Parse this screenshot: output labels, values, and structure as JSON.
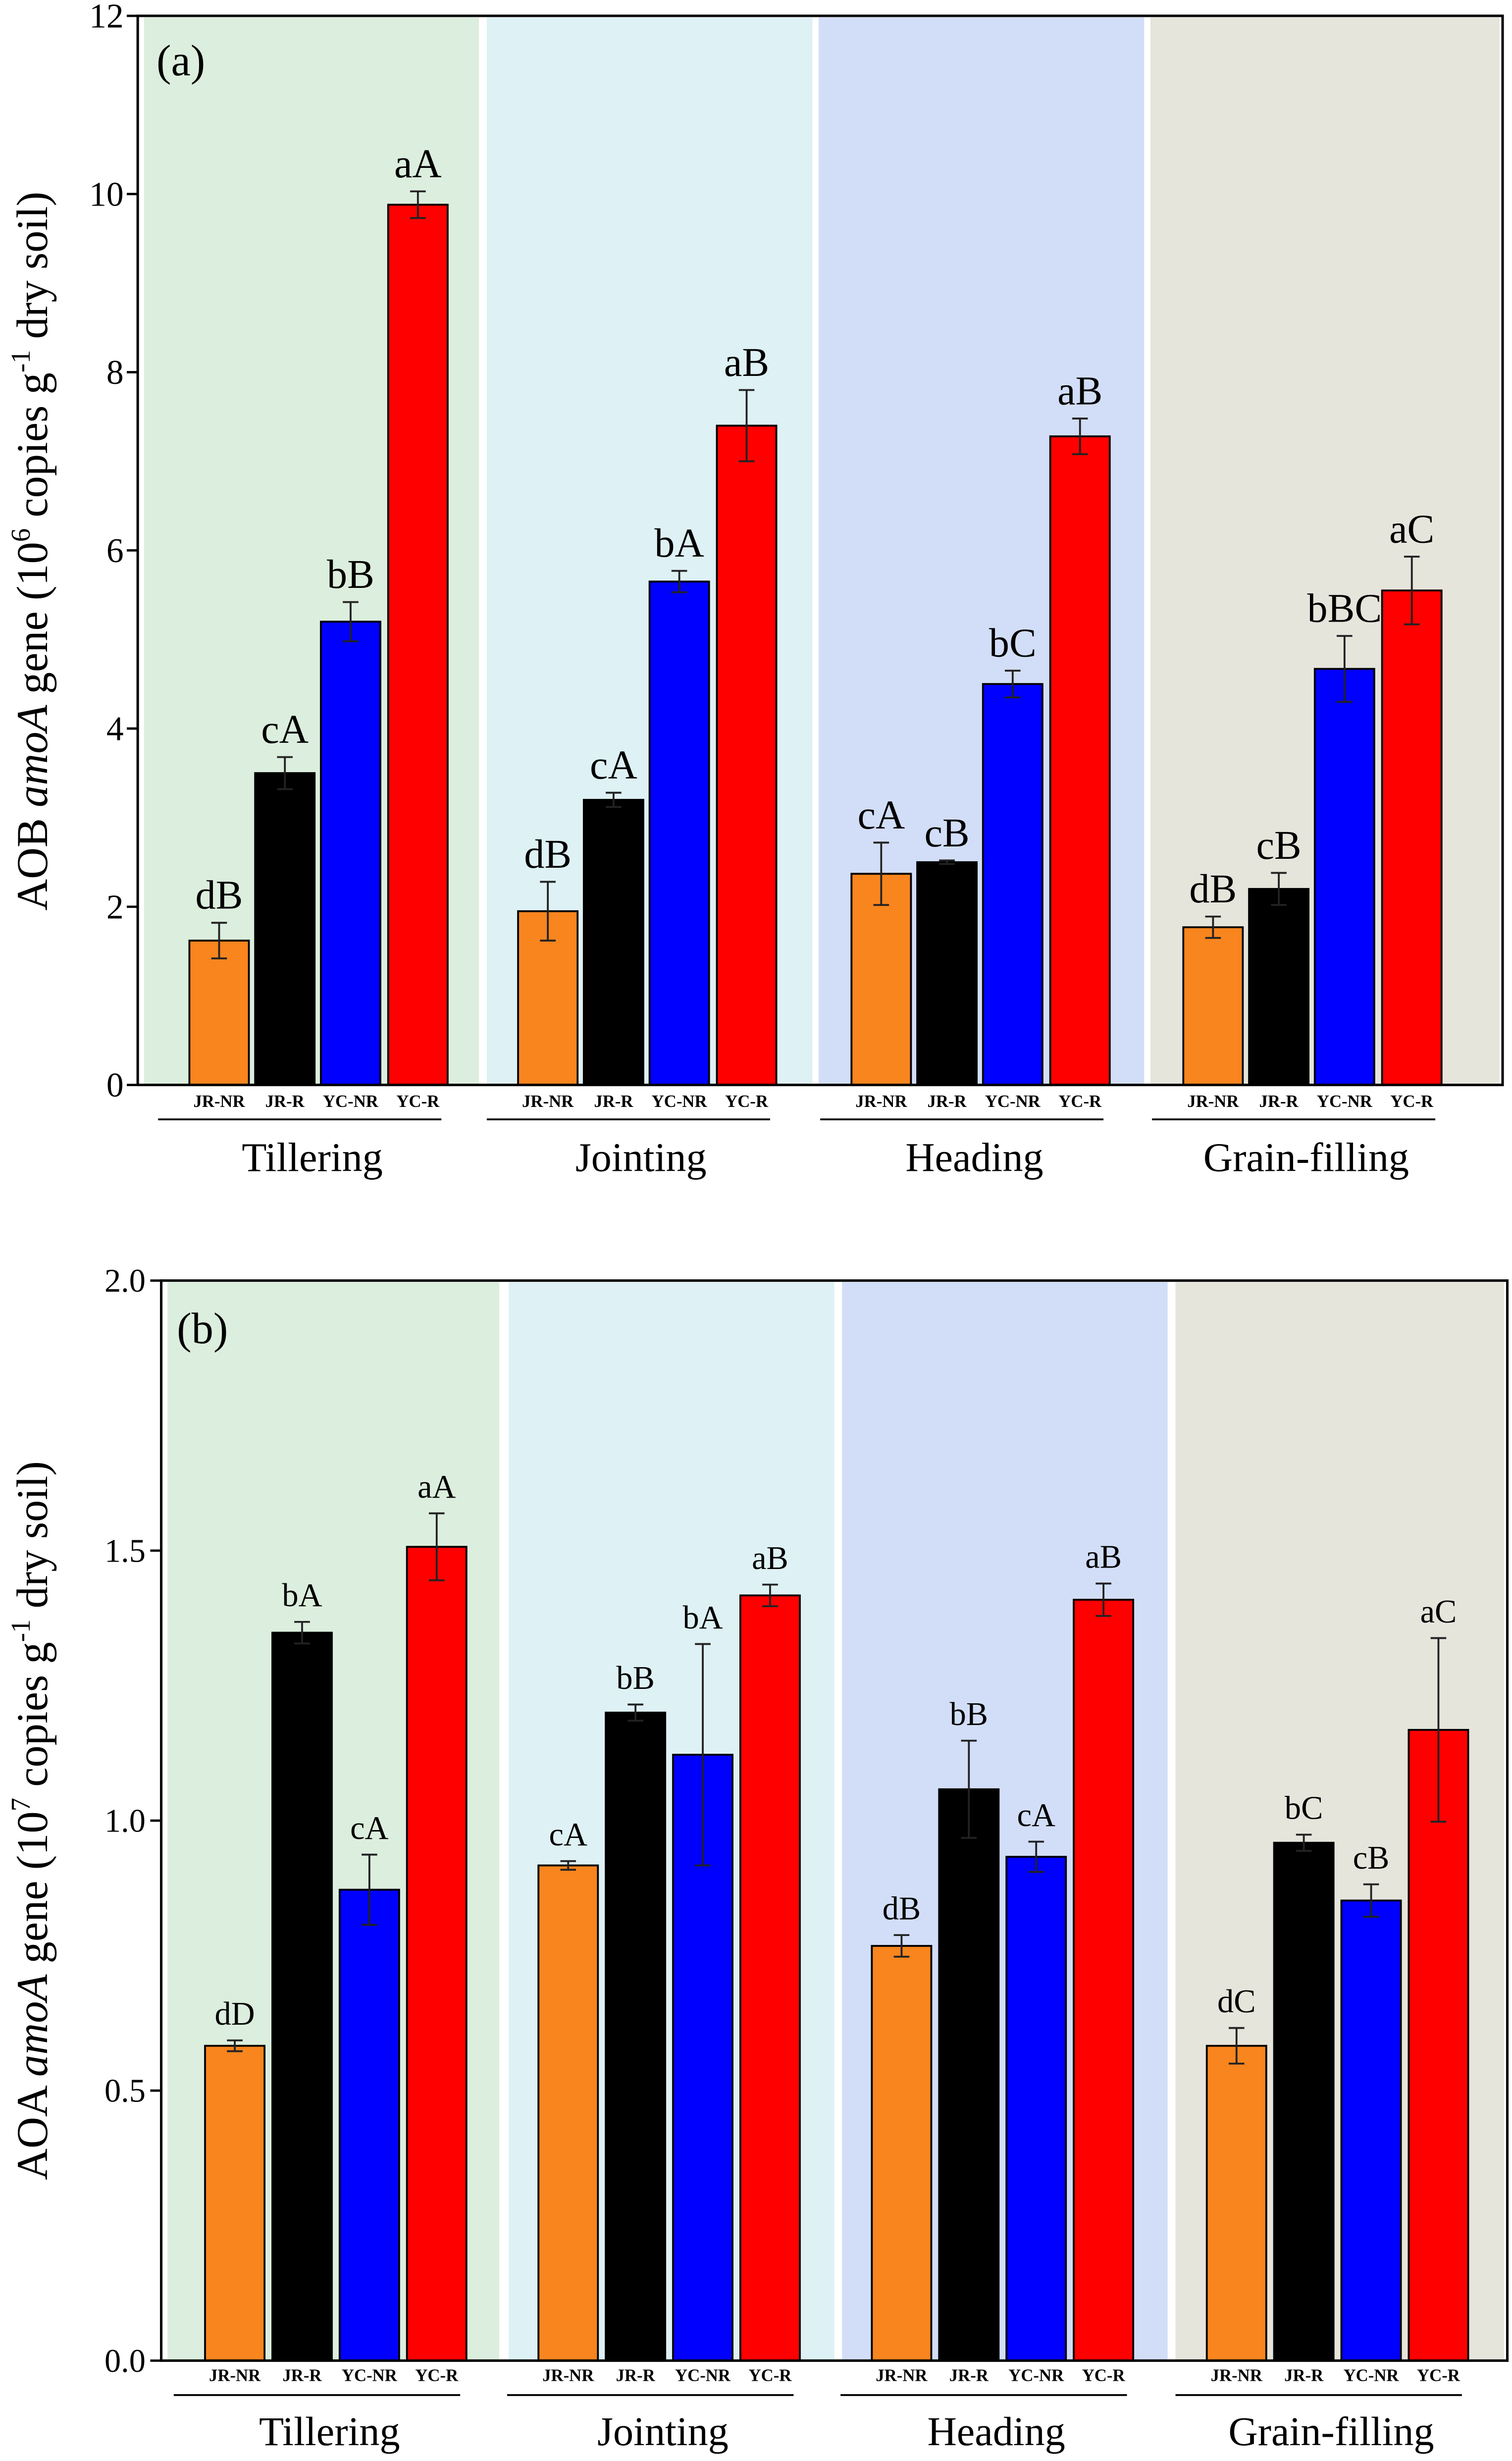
{
  "chart_data": [
    {
      "type": "bar",
      "panel_label": "(a)",
      "ylabel": {
        "pre": "AOB ",
        "italic": "amoA",
        "mid": " gene (10",
        "sup1": "6",
        "mid2": " copies g",
        "sup2": "-1",
        "post": " dry soil)"
      },
      "ylim": [
        0,
        12
      ],
      "ytick_labels": [
        "0",
        "2",
        "4",
        "6",
        "8",
        "10",
        "12"
      ],
      "categories": [
        "Tillering",
        "Jointing",
        "Heading",
        "Grain-filling"
      ],
      "backgrounds": [
        "#dceedd",
        "#def1f4",
        "#d2def7",
        "#e6e5dc"
      ],
      "series": [
        {
          "name": "JR-NR",
          "color": "#f8851e",
          "values": [
            1.62,
            1.95,
            2.37,
            1.77
          ],
          "errors": [
            0.2,
            0.33,
            0.35,
            0.12
          ],
          "labels": [
            "dB",
            "dB",
            "cA",
            "dB"
          ]
        },
        {
          "name": "JR-R",
          "color": "#000000",
          "values": [
            3.5,
            3.2,
            2.5,
            2.2
          ],
          "errors": [
            0.18,
            0.08,
            0.02,
            0.18
          ],
          "labels": [
            "cA",
            "cA",
            "cB",
            "cB"
          ]
        },
        {
          "name": "YC-NR",
          "color": "#0000ff",
          "values": [
            5.2,
            5.65,
            4.5,
            4.67
          ],
          "errors": [
            0.22,
            0.12,
            0.15,
            0.37
          ],
          "labels": [
            "bB",
            "bA",
            "bC",
            "bBC"
          ]
        },
        {
          "name": "YC-R",
          "color": "#ff0000",
          "values": [
            9.88,
            7.4,
            7.28,
            5.55
          ],
          "errors": [
            0.15,
            0.4,
            0.2,
            0.38
          ],
          "labels": [
            "aA",
            "aB",
            "aB",
            "aC"
          ]
        }
      ]
    },
    {
      "type": "bar",
      "panel_label": "(b)",
      "ylabel": {
        "pre": "AOA ",
        "italic": "amoA",
        "mid": " gene (10",
        "sup1": "7",
        "mid2": " copies g",
        "sup2": "-1",
        "post": " dry soil)"
      },
      "ylim": [
        0,
        2
      ],
      "ytick_labels": [
        "0.0",
        "0.5",
        "1.0",
        "1.5",
        "2.0"
      ],
      "categories": [
        "Tillering",
        "Jointing",
        "Heading",
        "Grain-filling"
      ],
      "backgrounds": [
        "#dceedd",
        "#def1f4",
        "#d2def7",
        "#e6e5dc"
      ],
      "series": [
        {
          "name": "JR-NR",
          "color": "#f8851e",
          "values": [
            0.583,
            0.917,
            0.768,
            0.583
          ],
          "errors": [
            0.01,
            0.008,
            0.02,
            0.033
          ],
          "labels": [
            "dD",
            "cA",
            "dB",
            "dC"
          ]
        },
        {
          "name": "JR-R",
          "color": "#000000",
          "values": [
            1.348,
            1.2,
            1.058,
            0.959
          ],
          "errors": [
            0.02,
            0.015,
            0.09,
            0.015
          ],
          "labels": [
            "bA",
            "bB",
            "bB",
            "bC"
          ]
        },
        {
          "name": "YC-NR",
          "color": "#0000ff",
          "values": [
            0.872,
            1.122,
            0.933,
            0.852
          ],
          "errors": [
            0.065,
            0.205,
            0.028,
            0.03
          ],
          "labels": [
            "cA",
            "bA",
            "cA",
            "cB"
          ]
        },
        {
          "name": "YC-R",
          "color": "#ff0000",
          "values": [
            1.507,
            1.417,
            1.409,
            1.168
          ],
          "errors": [
            0.062,
            0.02,
            0.03,
            0.17
          ],
          "labels": [
            "aA",
            "aB",
            "aB",
            "aC"
          ]
        }
      ]
    }
  ]
}
